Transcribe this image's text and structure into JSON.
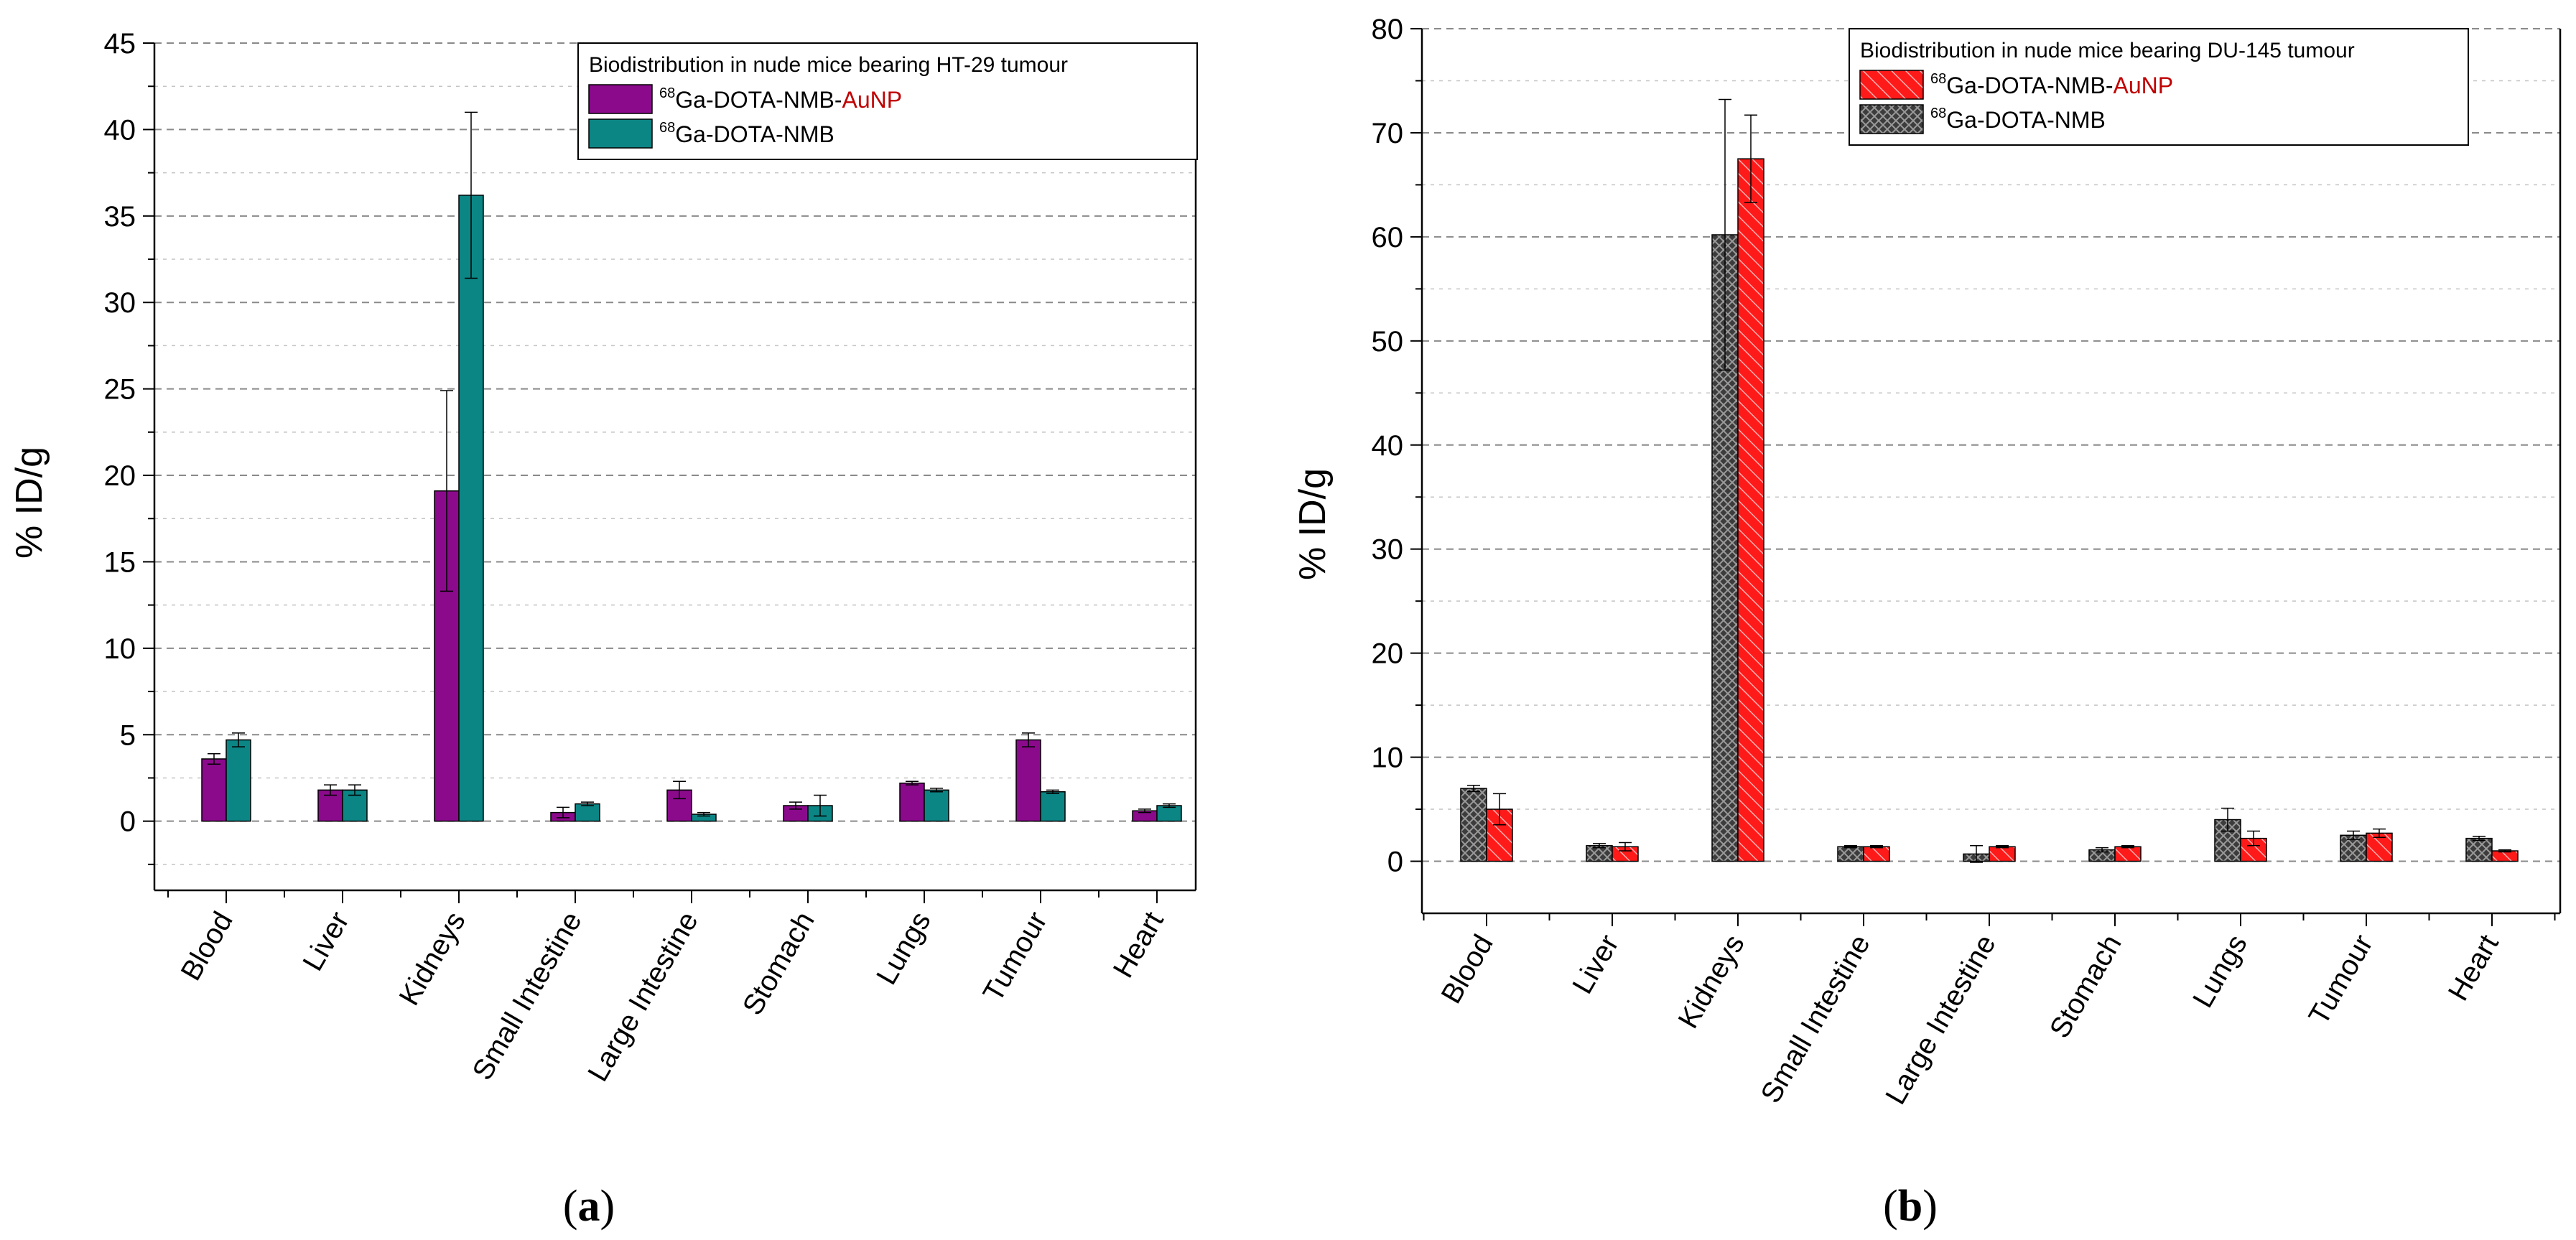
{
  "chart_data": [
    {
      "type": "bar",
      "panel_label": "(a)",
      "panel_letter": "a",
      "ylabel": "% ID/g",
      "ylim": [
        -4,
        45
      ],
      "yticks": [
        0,
        5,
        10,
        15,
        20,
        25,
        30,
        35,
        40,
        45
      ],
      "grid": true,
      "legend_position": "top-right",
      "legend_title": "Biodistribution in nude mice bearing HT-29 tumour",
      "categories": [
        "Blood",
        "Liver",
        "Kidneys",
        "Small Intestine",
        "Large Intestine",
        "Stomach",
        "Lungs",
        "Tumour",
        "Heart"
      ],
      "series": [
        {
          "name": "68Ga-DOTA-NMB-AuNP",
          "label_sup": "68",
          "label_main": "Ga-DOTA-NMB-",
          "label_accent": "AuNP",
          "color": "#8b0a8c",
          "pattern": "solid",
          "values": [
            3.6,
            1.8,
            19.1,
            0.5,
            1.8,
            0.9,
            2.2,
            4.7,
            0.6
          ],
          "errors": [
            0.3,
            0.3,
            5.8,
            0.3,
            0.5,
            0.2,
            0.1,
            0.4,
            0.1
          ]
        },
        {
          "name": "68Ga-DOTA-NMB",
          "label_sup": "68",
          "label_main": "Ga-DOTA-NMB",
          "label_accent": "",
          "color": "#0c8585",
          "pattern": "solid",
          "values": [
            4.7,
            1.8,
            36.2,
            1.0,
            0.4,
            0.9,
            1.8,
            1.7,
            0.9
          ],
          "errors": [
            0.4,
            0.3,
            4.8,
            0.1,
            0.1,
            0.6,
            0.1,
            0.1,
            0.1
          ]
        }
      ]
    },
    {
      "type": "bar",
      "panel_label": "(b)",
      "panel_letter": "b",
      "ylabel": "% ID/g",
      "ylim": [
        -5,
        80
      ],
      "yticks": [
        0,
        10,
        20,
        30,
        40,
        50,
        60,
        70,
        80
      ],
      "grid": true,
      "legend_position": "top-right",
      "legend_title": "Biodistribution in nude mice bearing DU-145 tumour",
      "legend_order": [
        1,
        0
      ],
      "categories": [
        "Blood",
        "Liver",
        "Kidneys",
        "Small Intestine",
        "Large Intestine",
        "Stomach",
        "Lungs",
        "Tumour",
        "Heart"
      ],
      "series": [
        {
          "name": "68Ga-DOTA-NMB",
          "label_sup": "68",
          "label_main": "Ga-DOTA-NMB",
          "label_accent": "",
          "color": "#3c3c3c",
          "pattern": "crosshatch",
          "values": [
            7.0,
            1.5,
            60.2,
            1.4,
            0.7,
            1.1,
            4.0,
            2.5,
            2.2
          ],
          "errors": [
            0.3,
            0.2,
            13.0,
            0.1,
            0.8,
            0.2,
            1.1,
            0.4,
            0.2
          ]
        },
        {
          "name": "68Ga-DOTA-NMB-AuNP",
          "label_sup": "68",
          "label_main": "Ga-DOTA-NMB-",
          "label_accent": "AuNP",
          "color": "#ff1a1a",
          "pattern": "diagonal",
          "values": [
            5.0,
            1.4,
            67.5,
            1.4,
            1.4,
            1.4,
            2.2,
            2.7,
            1.0
          ],
          "errors": [
            1.5,
            0.4,
            4.2,
            0.1,
            0.1,
            0.1,
            0.7,
            0.4,
            0.1
          ]
        }
      ]
    }
  ]
}
